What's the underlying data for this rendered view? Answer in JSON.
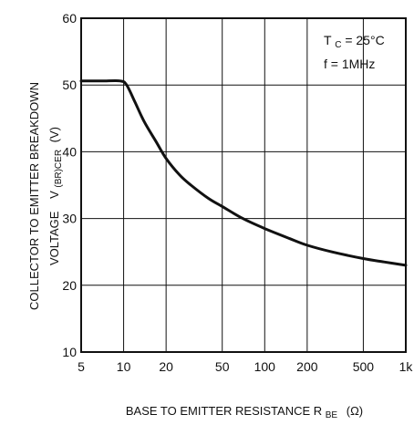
{
  "chart_data": {
    "type": "line",
    "xscale": "log",
    "xlim": [
      5,
      1000
    ],
    "ylim": [
      10,
      60
    ],
    "grid": true,
    "x_ticks": [
      {
        "value": 5,
        "label": "5"
      },
      {
        "value": 10,
        "label": "10"
      },
      {
        "value": 20,
        "label": "20"
      },
      {
        "value": 50,
        "label": "50"
      },
      {
        "value": 100,
        "label": "100"
      },
      {
        "value": 200,
        "label": "200"
      },
      {
        "value": 500,
        "label": "500"
      },
      {
        "value": 1000,
        "label": "1k"
      }
    ],
    "y_ticks": [
      {
        "value": 10,
        "label": "10"
      },
      {
        "value": 20,
        "label": "20"
      },
      {
        "value": 30,
        "label": "30"
      },
      {
        "value": 40,
        "label": "40"
      },
      {
        "value": 50,
        "label": "50"
      },
      {
        "value": 60,
        "label": "60"
      }
    ],
    "xlabel": {
      "main": "BASE TO EMITTER RESISTANCE R",
      "sub": "BE",
      "unit": "(Ω)"
    },
    "ylabel": {
      "line1": "COLLECTOR TO EMITTER BREAKDOWN",
      "line2_prefix": "VOLTAGE",
      "symbol": "V",
      "sub": "(BR)CER",
      "unit": "(V)"
    },
    "annotations": [
      {
        "main": "T",
        "sub": "C",
        "rest": " = 25°C"
      },
      {
        "main": "f = 1MHz"
      }
    ],
    "series": [
      {
        "color": "#111111",
        "points": [
          {
            "x": 5,
            "y": 50.6
          },
          {
            "x": 7,
            "y": 50.6
          },
          {
            "x": 9.5,
            "y": 50.6
          },
          {
            "x": 10.5,
            "y": 50.0
          },
          {
            "x": 12,
            "y": 47.5
          },
          {
            "x": 14,
            "y": 44.5
          },
          {
            "x": 17,
            "y": 41.5
          },
          {
            "x": 20,
            "y": 39.0
          },
          {
            "x": 25,
            "y": 36.5
          },
          {
            "x": 30,
            "y": 35.0
          },
          {
            "x": 40,
            "y": 33.0
          },
          {
            "x": 50,
            "y": 31.8
          },
          {
            "x": 70,
            "y": 30.0
          },
          {
            "x": 100,
            "y": 28.5
          },
          {
            "x": 150,
            "y": 27.0
          },
          {
            "x": 200,
            "y": 26.0
          },
          {
            "x": 300,
            "y": 25.0
          },
          {
            "x": 500,
            "y": 24.0
          },
          {
            "x": 700,
            "y": 23.5
          },
          {
            "x": 1000,
            "y": 23.0
          }
        ]
      }
    ]
  }
}
